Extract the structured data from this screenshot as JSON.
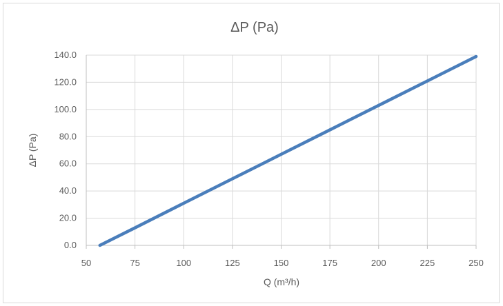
{
  "chart_data": {
    "type": "line",
    "title": "ΔP (Pa)",
    "xlabel": "Q (m³/h)",
    "ylabel": "ΔP (Pa)",
    "xlim": [
      50,
      250
    ],
    "ylim": [
      0,
      140
    ],
    "x_ticks": [
      50,
      75,
      100,
      125,
      150,
      175,
      200,
      225,
      250
    ],
    "x_tick_labels": [
      "50",
      "75",
      "100",
      "125",
      "150",
      "175",
      "200",
      "225",
      "250"
    ],
    "y_ticks": [
      0,
      20,
      40,
      60,
      80,
      100,
      120,
      140
    ],
    "y_tick_labels": [
      "0.0",
      "20.0",
      "40.0",
      "60.0",
      "80.0",
      "100.0",
      "120.0",
      "140.0"
    ],
    "grid": true,
    "legend": "none",
    "series": [
      {
        "color": "#4a7ebb",
        "x": [
          57,
          75,
          100,
          125,
          150,
          175,
          200,
          225,
          250
        ],
        "y": [
          0,
          12.9,
          31.0,
          49.0,
          67.0,
          85.0,
          103.0,
          121.0,
          139.0
        ]
      }
    ],
    "colors": {
      "grid": "#d9d9d9",
      "axis": "#bfbfbf",
      "text": "#595959"
    }
  }
}
